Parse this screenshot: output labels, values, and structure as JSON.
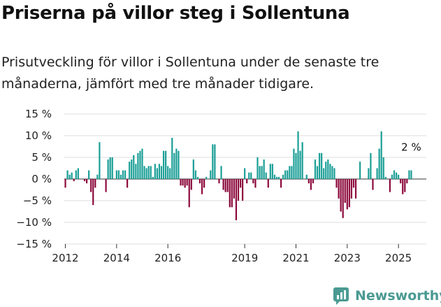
{
  "title": "Priserna på villor steg i Sollentuna",
  "subtitle": "Prisutveckling för villor i Sollentuna under de senaste tre månaderna, jämfört med tre månader tidigare.",
  "source": "Newsworthy",
  "colors": {
    "positive": "#1a9e96",
    "negative": "#8c0a3c",
    "grid": "#dddddd",
    "axis": "#333333",
    "logo": "#4a9a92"
  },
  "chart_data": {
    "type": "bar",
    "title": "Priserna på villor steg i Sollentuna",
    "ylabel": "",
    "ylim": [
      -15,
      15
    ],
    "yticks": [
      "15 %",
      "10 %",
      "5 %",
      "0 %",
      "−5 %",
      "−10 %",
      "−15 %"
    ],
    "ytick_values": [
      15,
      10,
      5,
      0,
      -5,
      -10,
      -15
    ],
    "xticks": [
      "2012",
      "2014",
      "2016",
      "2019",
      "2021",
      "2023",
      "2025"
    ],
    "xtick_positions": [
      0,
      24,
      48,
      84,
      108,
      132,
      156
    ],
    "xtick_note": "month index from January 2012",
    "annotation": "2 %",
    "values": [
      -2,
      2,
      1,
      1.5,
      -0.5,
      2,
      2.5,
      0,
      0,
      -0.5,
      -1,
      2,
      -3,
      -6,
      -2,
      1,
      8.5,
      0,
      0,
      -3,
      4.5,
      5,
      5,
      0,
      2,
      2,
      1,
      2,
      2,
      -2,
      4,
      4.5,
      5.5,
      3.5,
      6,
      6.5,
      7,
      3,
      2.5,
      3,
      3,
      0.5,
      3.5,
      2.5,
      3.5,
      3,
      6.5,
      6.5,
      3,
      2.5,
      9.5,
      6,
      7,
      6.5,
      -1.5,
      -1.5,
      -2,
      -1.5,
      -6.5,
      -2.5,
      4.5,
      2,
      0.5,
      -1,
      -3.5,
      -2,
      0.5,
      0,
      2,
      8,
      8,
      0,
      -1,
      3,
      -2.5,
      -3,
      -3,
      -6.5,
      -6.5,
      -4.5,
      -9.5,
      -5,
      -2,
      -5,
      2.5,
      -1,
      1.5,
      1.5,
      -1,
      -2,
      5,
      3,
      3,
      4.5,
      1.5,
      -2,
      3.5,
      3.5,
      1,
      0.5,
      0.5,
      -2,
      1,
      2,
      2,
      3,
      3,
      7,
      6,
      11,
      6.5,
      8.5,
      0,
      1,
      -1,
      -2.5,
      -1,
      4.5,
      3,
      6,
      6,
      2.5,
      4,
      4.5,
      3.5,
      3,
      2.5,
      -2,
      -4.5,
      -7.5,
      -9,
      -5.5,
      -7,
      -6.5,
      -4.5,
      -2,
      -4.5,
      0,
      4,
      0,
      0,
      0,
      2.5,
      6,
      -2.5,
      0,
      2.5,
      7,
      11,
      5,
      0.5,
      0,
      -3,
      1,
      2,
      1.5,
      1,
      -1,
      -3.5,
      -3,
      -1,
      2,
      2
    ]
  }
}
